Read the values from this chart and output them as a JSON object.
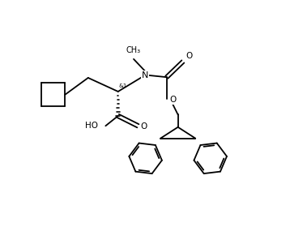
{
  "bg": "#ffffff",
  "lc": "#000000",
  "lw": 1.3,
  "fs": 7.5,
  "figsize": [
    3.58,
    2.8
  ],
  "dpi": 100,
  "xlim": [
    0,
    3.58
  ],
  "ylim": [
    0,
    2.8
  ]
}
